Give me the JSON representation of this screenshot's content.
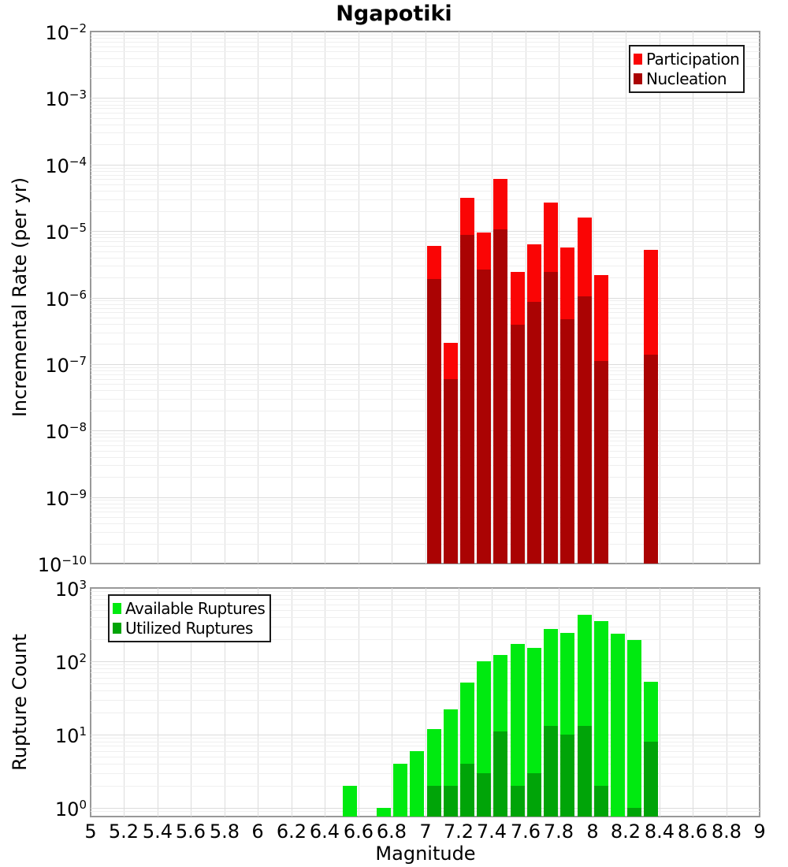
{
  "title": "Ngapotiki",
  "colors": {
    "participation": "#FA0505",
    "nucleation": "#AA0303",
    "available": "#00EA10",
    "utilized": "#00A408",
    "grid_minor": "#EFEFEF",
    "grid_major": "#DCDCDC",
    "axis_border": "#999999",
    "legend_border": "#1A1A1A",
    "text": "#000000"
  },
  "xaxis": {
    "label": "Magnitude",
    "min": 5,
    "max": 9,
    "tick_step": 0.2,
    "tick_labels": [
      "5",
      "5.2",
      "5.4",
      "5.6",
      "5.8",
      "6",
      "6.2",
      "6.4",
      "6.6",
      "6.8",
      "7",
      "7.2",
      "7.4",
      "7.6",
      "7.8",
      "8",
      "8.2",
      "8.4",
      "8.6",
      "8.8",
      "9"
    ]
  },
  "chart_data": [
    {
      "id": "incremental-rate-panel",
      "type": "bar",
      "stacking": "overlay",
      "title": "Ngapotiki",
      "ylabel": "Incremental Rate (per yr)",
      "yscale": "log",
      "ylim": [
        1e-10,
        0.01
      ],
      "ytick_exponents": [
        -2,
        -3,
        -4,
        -5,
        -6,
        -7,
        -8,
        -9,
        -10
      ],
      "xlabel": "Magnitude",
      "xlim": [
        5,
        9
      ],
      "bin_width": 0.1,
      "grid": true,
      "legend_position": "top-right",
      "series": [
        {
          "name": "Participation",
          "color_key": "participation",
          "bins": [
            [
              7.0,
              6e-06
            ],
            [
              7.1,
              2.1e-07
            ],
            [
              7.2,
              3.2e-05
            ],
            [
              7.3,
              9.5e-06
            ],
            [
              7.4,
              6e-05
            ],
            [
              7.5,
              2.4e-06
            ],
            [
              7.6,
              6.3e-06
            ],
            [
              7.7,
              2.7e-05
            ],
            [
              7.8,
              5.6e-06
            ],
            [
              7.9,
              1.6e-05
            ],
            [
              8.0,
              2.2e-06
            ],
            [
              8.3,
              5.2e-06
            ]
          ]
        },
        {
          "name": "Nucleation",
          "color_key": "nucleation",
          "bins": [
            [
              7.0,
              1.9e-06
            ],
            [
              7.1,
              6e-08
            ],
            [
              7.2,
              8.8e-06
            ],
            [
              7.3,
              2.6e-06
            ],
            [
              7.4,
              1.05e-05
            ],
            [
              7.5,
              3.9e-07
            ],
            [
              7.6,
              8.6e-07
            ],
            [
              7.7,
              2.4e-06
            ],
            [
              7.8,
              4.7e-07
            ],
            [
              7.9,
              1.05e-06
            ],
            [
              8.0,
              1.1e-07
            ],
            [
              8.3,
              1.4e-07
            ]
          ]
        }
      ]
    },
    {
      "id": "rupture-count-panel",
      "type": "bar",
      "stacking": "overlay",
      "ylabel": "Rupture Count",
      "yscale": "log",
      "ylim": [
        1,
        1000
      ],
      "ytick_exponents": [
        3,
        2,
        1,
        0
      ],
      "xlabel": "Magnitude",
      "xlim": [
        5,
        9
      ],
      "bin_width": 0.1,
      "grid": true,
      "legend_position": "top-left",
      "series": [
        {
          "name": "Available Ruptures",
          "color_key": "available",
          "bins": [
            [
              6.5,
              2
            ],
            [
              6.7,
              1
            ],
            [
              6.8,
              4
            ],
            [
              6.9,
              6
            ],
            [
              7.0,
              12
            ],
            [
              7.1,
              22
            ],
            [
              7.2,
              51
            ],
            [
              7.3,
              100
            ],
            [
              7.4,
              122
            ],
            [
              7.5,
              172
            ],
            [
              7.6,
              152
            ],
            [
              7.7,
              276
            ],
            [
              7.8,
              244
            ],
            [
              7.9,
              431
            ],
            [
              8.0,
              353
            ],
            [
              8.1,
              238
            ],
            [
              8.2,
              195
            ],
            [
              8.3,
              52
            ]
          ]
        },
        {
          "name": "Utilized Ruptures",
          "color_key": "utilized",
          "bins": [
            [
              7.0,
              2
            ],
            [
              7.1,
              2
            ],
            [
              7.2,
              4
            ],
            [
              7.3,
              3
            ],
            [
              7.4,
              11
            ],
            [
              7.5,
              2
            ],
            [
              7.6,
              3
            ],
            [
              7.7,
              13
            ],
            [
              7.8,
              10
            ],
            [
              7.9,
              13
            ],
            [
              8.0,
              2
            ],
            [
              8.2,
              1
            ],
            [
              8.3,
              8
            ]
          ]
        }
      ]
    }
  ]
}
